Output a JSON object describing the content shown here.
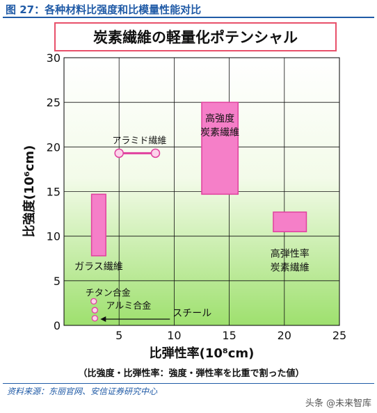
{
  "figure": {
    "label": "图 27：各种材料比强度和比模量性能对比",
    "source": "资料来源：东丽官网、安信证券研究中心",
    "watermark": "头条 @未来智库"
  },
  "chart_data": {
    "type": "scatter",
    "title": "炭素繊維の軽量化ポテンシャル",
    "xlabel": "比弾性率(10⁸cm)",
    "ylabel": "比強度(10⁶cm)",
    "xlim": [
      0,
      25
    ],
    "ylim": [
      0,
      30
    ],
    "xticks": [
      5,
      10,
      15,
      20,
      25
    ],
    "yticks": [
      0,
      5,
      10,
      15,
      20,
      25,
      30
    ],
    "grid": true,
    "note": "（比強度・比弾性率：強度・弾性率を比重で割った値）",
    "materials": [
      {
        "name": "高強度\n炭素繊維",
        "shape": "region",
        "x": [
          12.5,
          15.8
        ],
        "y": [
          14.7,
          25.0
        ]
      },
      {
        "name": "高弾性率\n炭素繊維",
        "shape": "region",
        "x": [
          19.0,
          22.0
        ],
        "y": [
          10.5,
          12.7
        ]
      },
      {
        "name": "ガラス繊維",
        "shape": "region",
        "x": [
          2.5,
          3.8
        ],
        "y": [
          7.8,
          14.7
        ]
      },
      {
        "name": "アラミド繊維",
        "shape": "range",
        "x": [
          5.0,
          8.3
        ],
        "y": [
          19.3,
          19.3
        ]
      },
      {
        "name": "チタン合金",
        "shape": "point",
        "x": [
          2.7
        ],
        "y": [
          2.7
        ]
      },
      {
        "name": "アルミ合金",
        "shape": "point",
        "x": [
          2.8,
          2.8
        ],
        "y": [
          1.7,
          0.8
        ]
      },
      {
        "name": "スチール",
        "shape": "arrow",
        "x": [
          3.3
        ],
        "y": [
          0.7
        ]
      }
    ]
  },
  "colors": {
    "fill": "#f57fc8",
    "stroke": "#e0409e",
    "bg_top": "#ffffff",
    "bg_bottom": "#9ee06e",
    "title_box_stroke": "#e8506a",
    "accent": "#1f5aa6"
  }
}
